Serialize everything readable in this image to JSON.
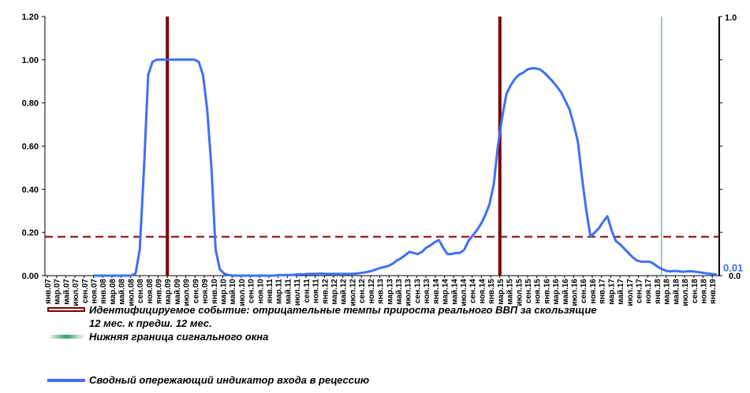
{
  "colors": {
    "indicator": "#3f6ff5",
    "event": "#7a0000",
    "threshold": "#8b0000",
    "lower_bound": "#3aa06a",
    "right_value": "#3f6ff5"
  },
  "right_axis": {
    "top_label": "1.0",
    "bottom_label": "0.0"
  },
  "chart_data": {
    "type": "line",
    "ylim": [
      0,
      1.2
    ],
    "y_ticks": [
      "1.20",
      "1.00",
      "0.80",
      "0.60",
      "0.40",
      "0.20",
      "0.00"
    ],
    "y_tick_values": [
      1.2,
      1.0,
      0.8,
      0.6,
      0.4,
      0.2,
      0.0
    ],
    "x_labels": [
      "янв.07",
      "мар.07",
      "май.07",
      "июл.07",
      "сен.07",
      "ноя.07",
      "янв.08",
      "мар.08",
      "май.08",
      "июл.08",
      "сен.08",
      "ноя.08",
      "янв.09",
      "мар.09",
      "май.09",
      "июл.09",
      "сен.09",
      "ноя.09",
      "янв.10",
      "мар.10",
      "май.10",
      "июл.10",
      "сен.10",
      "ноя.10",
      "янв.11",
      "мар.11",
      "май.11",
      "июл.11",
      "сен.11",
      "ноя.11",
      "янв.12",
      "мар.12",
      "май.12",
      "июл.12",
      "сен.12",
      "ноя.12",
      "янв.13",
      "мар.13",
      "май.13",
      "июл.13",
      "сен.13",
      "ноя.13",
      "янв.14",
      "мар.14",
      "май.14",
      "июл.14",
      "сен.14",
      "ноя.14",
      "янв.15",
      "мар.15",
      "май.15",
      "июл.15",
      "сен.15",
      "ноя.15",
      "янв.16",
      "мар.16",
      "май.16",
      "июл.16",
      "сен.16",
      "ноя.16",
      "янв.17",
      "мар.17",
      "май.17",
      "июл.17",
      "сен.17",
      "ноя.17",
      "янв.18",
      "мар.18",
      "май.18",
      "июл.18",
      "сен.18",
      "ноя.18",
      "янв.19"
    ],
    "series": [
      {
        "name": "Сводный опережающий индикатор входа в рецессию",
        "start": "ноя.07",
        "end": "фев.19",
        "values": [
          0,
          0,
          0,
          0,
          0,
          0,
          0,
          0,
          0,
          0,
          0.01,
          0.12,
          0.5,
          0.93,
          0.99,
          1.0,
          1.0,
          1.0,
          1.0,
          1.0,
          1.0,
          1.0,
          1.0,
          1.0,
          1.0,
          0.99,
          0.93,
          0.77,
          0.5,
          0.12,
          0.03,
          0.01,
          0.003,
          0,
          0,
          0,
          0,
          0,
          0,
          0,
          0,
          0,
          0,
          0,
          0.003,
          0.003,
          0.003,
          0.003,
          0.005,
          0.006,
          0.006,
          0.008,
          0.008,
          0.008,
          0.01,
          0.008,
          0.008,
          0.008,
          0.008,
          0.008,
          0.008,
          0.008,
          0.009,
          0.011,
          0.014,
          0.017,
          0.022,
          0.028,
          0.035,
          0.04,
          0.045,
          0.055,
          0.07,
          0.08,
          0.095,
          0.11,
          0.105,
          0.1,
          0.11,
          0.13,
          0.14,
          0.155,
          0.165,
          0.13,
          0.1,
          0.1,
          0.105,
          0.105,
          0.12,
          0.16,
          0.185,
          0.21,
          0.24,
          0.28,
          0.33,
          0.42,
          0.6,
          0.73,
          0.84,
          0.88,
          0.91,
          0.93,
          0.94,
          0.955,
          0.96,
          0.96,
          0.955,
          0.94,
          0.92,
          0.9,
          0.875,
          0.85,
          0.81,
          0.77,
          0.7,
          0.62,
          0.45,
          0.3,
          0.18,
          0.2,
          0.22,
          0.25,
          0.275,
          0.21,
          0.16,
          0.145,
          0.125,
          0.105,
          0.085,
          0.07,
          0.065,
          0.065,
          0.065,
          0.055,
          0.04,
          0.03,
          0.022,
          0.02,
          0.022,
          0.02,
          0.018,
          0.02,
          0.02,
          0.018,
          0.015,
          0.012,
          0.01,
          0.007,
          0.005
        ]
      }
    ],
    "event_lines": [
      "мар.09",
      "мар.15"
    ],
    "lower_bound_line": "фев.18",
    "threshold_value": 0.18,
    "right_value_label": "0.01",
    "legend": [
      {
        "label_line1": "Идентифицируемое событие: отрицательные темпы прироста реального ВВП за скользящие",
        "label_line2": "12 мес. к предш. 12 мес."
      },
      {
        "label_line1": "Нижняя граница сигнального окна"
      },
      {
        "label_line1": "Сводный опережающий индикатор входа в рецессию"
      }
    ]
  }
}
